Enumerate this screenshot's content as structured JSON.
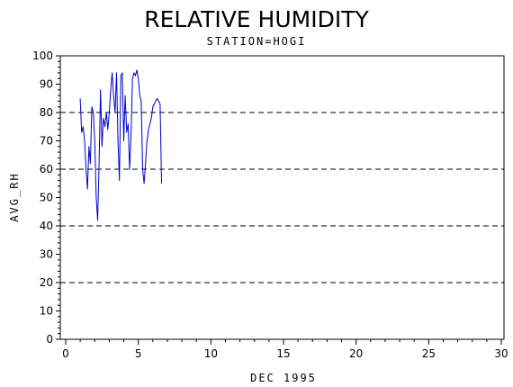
{
  "chart_data": {
    "type": "line",
    "title": "RELATIVE HUMIDITY",
    "subtitle": "STATION=HOGI",
    "xlabel": "DEC 1995",
    "ylabel": "AVG_RH",
    "xlim": [
      0,
      30
    ],
    "ylim": [
      0,
      100
    ],
    "x_ticks": [
      0,
      5,
      10,
      15,
      20,
      25,
      30
    ],
    "y_ticks": [
      0,
      10,
      20,
      30,
      40,
      50,
      60,
      70,
      80,
      90,
      100
    ],
    "reference_lines_y": [
      0,
      20,
      40,
      60,
      80,
      100
    ],
    "grid": false,
    "colors": {
      "series": "#0000cc",
      "axes": "#000000",
      "reference_lines": "#000000"
    },
    "series": [
      {
        "x": [
          1.0,
          1.1,
          1.2,
          1.3,
          1.4,
          1.5,
          1.6,
          1.7,
          1.8,
          1.9,
          2.0,
          2.1,
          2.2,
          2.3,
          2.4,
          2.5,
          2.6,
          2.7,
          2.8,
          2.9,
          3.0,
          3.1,
          3.2,
          3.3,
          3.4,
          3.5,
          3.6,
          3.7,
          3.8,
          3.9,
          4.0,
          4.1,
          4.2,
          4.3,
          4.4,
          4.5,
          4.6,
          4.7,
          4.8,
          4.9,
          5.0,
          5.1,
          5.2,
          5.3,
          5.4,
          5.5,
          5.6,
          5.7,
          5.8,
          5.9,
          6.0,
          6.1,
          6.2,
          6.3,
          6.4,
          6.5,
          6.6
        ],
        "y": [
          85,
          73,
          75,
          70,
          60,
          53,
          68,
          62,
          82,
          80,
          70,
          50,
          42,
          62,
          88,
          68,
          78,
          75,
          80,
          74,
          80,
          88,
          94,
          86,
          80,
          94,
          70,
          56,
          93,
          94,
          70,
          86,
          73,
          76,
          60,
          72,
          92,
          94,
          93,
          95,
          92,
          86,
          84,
          60,
          55,
          62,
          70,
          74,
          76,
          78,
          82,
          83,
          84,
          85,
          84,
          83,
          55
        ]
      }
    ]
  }
}
